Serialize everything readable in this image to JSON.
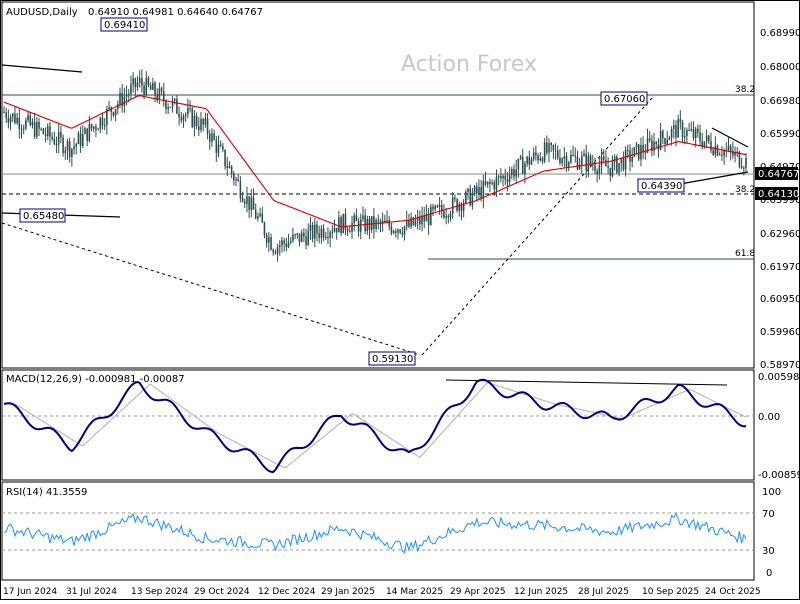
{
  "header": {
    "symbol": "AUDUSD,Daily",
    "ohlc": "0.64910 0.64981 0.64640 0.64767"
  },
  "watermark": "Action Forex",
  "price_axis": {
    "ticks": [
      "0.68990",
      "0.68000",
      "0.66980",
      "0.65990",
      "0.64970",
      "0.63990",
      "0.62960",
      "0.61970",
      "0.60950",
      "0.59960",
      "0.58970"
    ],
    "current_price": "0.64767",
    "marker_price": "0.64130"
  },
  "date_axis": [
    "17 Jun 2024",
    "31 Jul 2024",
    "13 Sep 2024",
    "29 Oct 2024",
    "12 Dec 2024",
    "29 Jan 2025",
    "14 Mar 2025",
    "29 Apr 2025",
    "12 Jun 2025",
    "28 Jul 2025",
    "10 Sep 2025",
    "24 Oct 2025"
  ],
  "annotations": {
    "high_label": "0.69410",
    "low_label": "0.59130",
    "left_label": "0.65480",
    "swing_high_label": "0.67060",
    "swing_low_label": "0.64390",
    "fib_382_top": "38.2",
    "fib_382_mid": "38.2",
    "fib_618": "61.8"
  },
  "macd": {
    "label": "MACD(12,26,9) -0.000981 -0.00087",
    "ticks": [
      "0.005981",
      "0.00",
      "-0.00859"
    ]
  },
  "rsi": {
    "label": "RSI(14) 41.3559",
    "ticks": [
      "100",
      "70",
      "30",
      "0"
    ]
  },
  "colors": {
    "candle": "#2f4f4f",
    "ma": "#d40000",
    "macd_line": "#000080",
    "signal": "#b0b0b0",
    "rsi_line": "#1e90ff",
    "label_border": "#000080",
    "current_bg": "#000000"
  },
  "chart_data": [
    {
      "type": "candlestick",
      "title": "AUDUSD,Daily",
      "series": [
        {
          "name": "AUDUSD",
          "x": [
            "17 Jun 2024",
            "31 Jul 2024",
            "13 Sep 2024",
            "29 Oct 2024",
            "12 Dec 2024",
            "29 Jan 2025",
            "14 Mar 2025",
            "29 Apr 2025",
            "12 Jun 2025",
            "28 Jul 2025",
            "10 Sep 2025",
            "24 Oct 2025"
          ],
          "close": [
            0.665,
            0.654,
            0.674,
            0.66,
            0.624,
            0.631,
            0.63,
            0.64,
            0.653,
            0.648,
            0.66,
            0.65
          ]
        },
        {
          "name": "MA",
          "values": [
            0.668,
            0.66,
            0.67,
            0.666,
            0.638,
            0.63,
            0.632,
            0.638,
            0.647,
            0.65,
            0.656,
            0.652
          ]
        }
      ],
      "key_levels": {
        "high": 0.6941,
        "low": 0.5913,
        "swing_high": 0.6706,
        "swing_low": 0.6439,
        "left_level": 0.6548,
        "support": 0.6413,
        "last": 0.64767
      },
      "ylim": [
        0.587,
        0.6985
      ]
    },
    {
      "type": "line",
      "title": "MACD(12,26,9) -0.000981 -0.00087",
      "series": [
        {
          "name": "MACD",
          "values": [
            0.0018,
            -0.0045,
            0.0048,
            -0.0025,
            -0.0078,
            0.0004,
            -0.0062,
            0.005,
            0.0018,
            -0.0004,
            0.004,
            -0.001
          ]
        }
      ],
      "ylim": [
        -0.00859,
        0.005981
      ]
    },
    {
      "type": "line",
      "title": "RSI(14) 41.3559",
      "series": [
        {
          "name": "RSI",
          "values": [
            55,
            38,
            68,
            42,
            34,
            55,
            30,
            62,
            58,
            50,
            66,
            41.36
          ]
        }
      ],
      "ylim": [
        0,
        100
      ]
    }
  ]
}
